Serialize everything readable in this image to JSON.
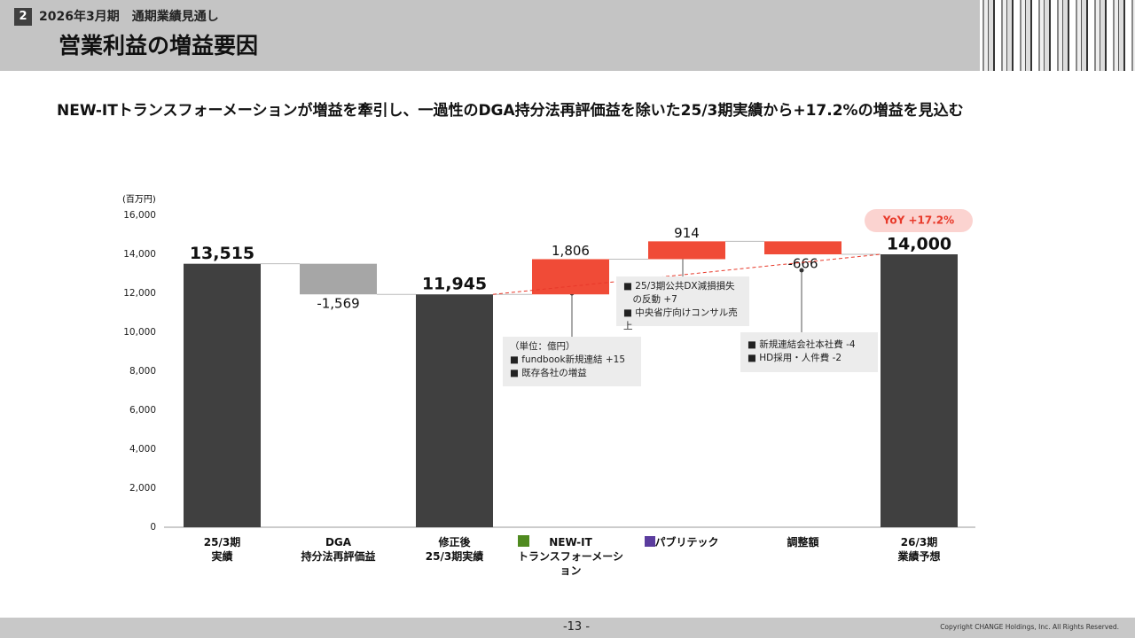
{
  "header": {
    "section_number": "2",
    "section": "2026年3月期　通期業績見通し",
    "title": "営業利益の増益要因"
  },
  "subtitle": "NEW-ITトランスフォーメーションが増益を牽引し、一過性のDGA持分法再評価益を除いた25/3期実績から+17.2%の増益を見込む",
  "chart_data": {
    "type": "waterfall",
    "y_axis_label": "(百万円)",
    "categories": [
      "25/3期\n実績",
      "DGA\n持分法再評価益",
      "修正後\n25/3期実績",
      "NEW-IT\nトランスフォーメーション",
      "パブリテック",
      "調整額",
      "26/3期\n業績予想"
    ],
    "values": [
      13515,
      -1569,
      11945,
      1806,
      914,
      -666,
      14000
    ],
    "value_labels": [
      "13,515",
      "-1,569",
      "11,945",
      "1,806",
      "914",
      "-666",
      "14,000"
    ],
    "measure": [
      "absolute",
      "relative",
      "absolute",
      "relative",
      "relative",
      "relative",
      "absolute"
    ],
    "colors": [
      "#404040",
      "#a6a6a6",
      "#404040",
      "#f04b37",
      "#f04b37",
      "#f04b37",
      "#404040"
    ],
    "ylim": [
      0,
      16000
    ],
    "yticks": [
      0,
      {
        "value": 2000,
        "label": "2,000"
      },
      {
        "value": 4000,
        "label": "4,000"
      },
      {
        "value": 6000,
        "label": "6,000"
      },
      {
        "value": 8000,
        "label": "8,000"
      },
      {
        "value": 10000,
        "label": "10,000"
      },
      {
        "value": 12000,
        "label": "12,000"
      },
      {
        "value": 14000,
        "label": "14,000"
      },
      {
        "value": 16000,
        "label": "16,000"
      }
    ],
    "grid": false,
    "annotations": {
      "yoy": "YoY +17.2%",
      "new_it": [
        "（単位：億円）",
        "■ fundbook新規連結 +15",
        "■ 既存各社の増益"
      ],
      "public_tech": [
        "■ 25/3期公共DX減損損失\n　の反動 +7",
        "■ 中央省庁向けコンサル売上"
      ],
      "adjustment": [
        "■ 新規連結会社本社費 -4",
        "■ HD採用・人件費 -2"
      ]
    }
  },
  "footer": {
    "page": "-13 -",
    "copyright": "Copyright CHANGE Holdings, Inc. All Rights Reserved."
  }
}
